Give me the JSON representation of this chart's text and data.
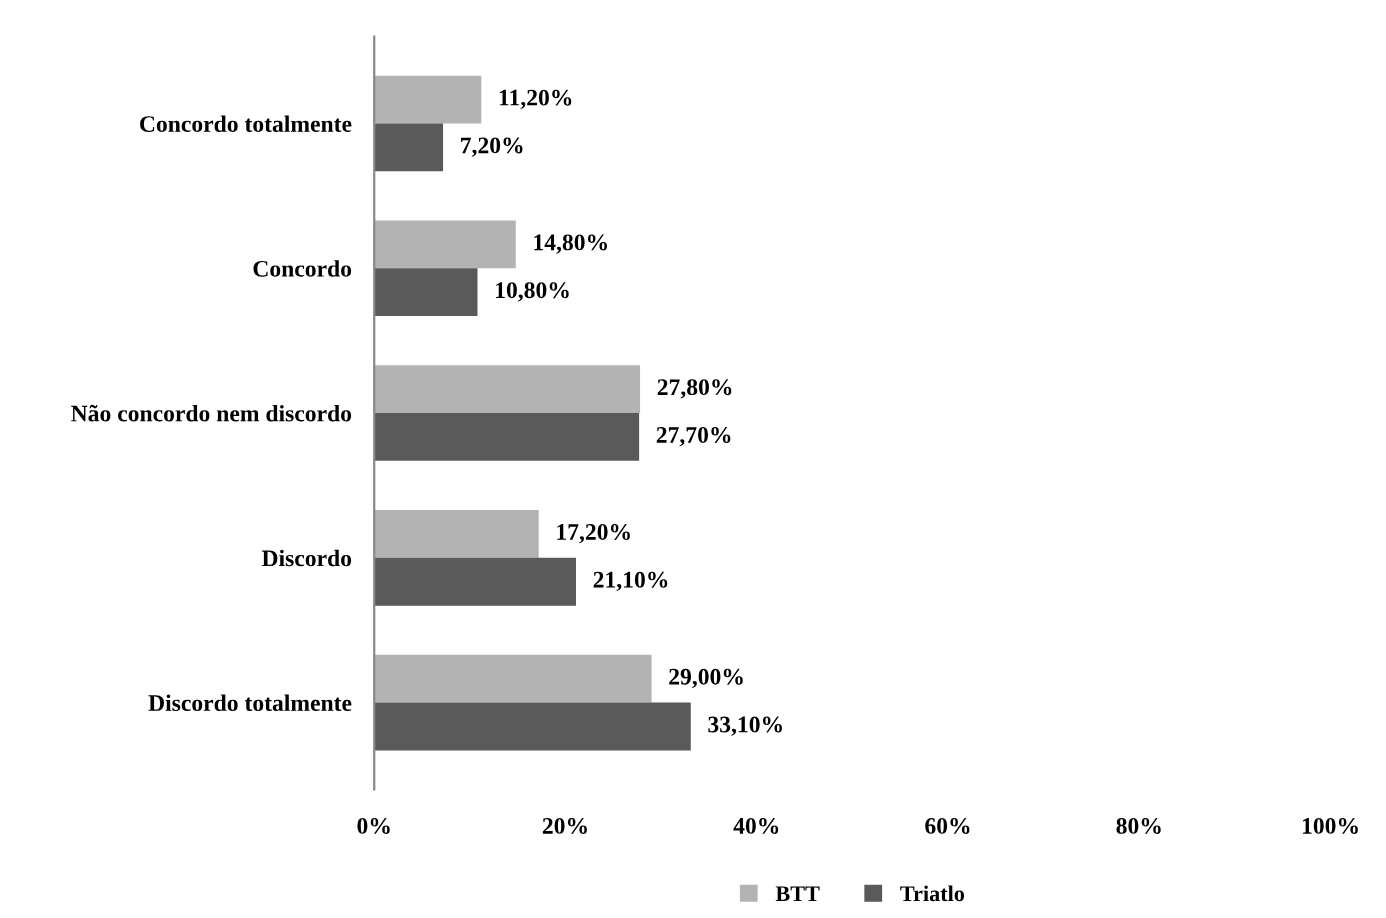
{
  "chart_data": {
    "type": "bar",
    "orientation": "horizontal",
    "categories": [
      "Concordo totalmente",
      "Concordo",
      "Não concordo nem discordo",
      "Discordo",
      "Discordo totalmente"
    ],
    "series": [
      {
        "name": "BTT",
        "color": "#b3b3b3",
        "values": [
          11.2,
          14.8,
          27.8,
          17.2,
          29.0
        ],
        "value_labels": [
          "11,20%",
          "14,80%",
          "27,80%",
          "17,20%",
          "29,00%"
        ]
      },
      {
        "name": "Triatlo",
        "color": "#5a5a5a",
        "values": [
          7.2,
          10.8,
          27.7,
          21.1,
          33.1
        ],
        "value_labels": [
          "7,20%",
          "10,80%",
          "27,70%",
          "21,10%",
          "33,10%"
        ]
      }
    ],
    "xlim": [
      0,
      100
    ],
    "xticks": [
      {
        "value": 0,
        "label": "0%"
      },
      {
        "value": 20,
        "label": "20%"
      },
      {
        "value": 40,
        "label": "40%"
      },
      {
        "value": 60,
        "label": "60%"
      },
      {
        "value": 80,
        "label": "80%"
      },
      {
        "value": 100,
        "label": "100%"
      }
    ],
    "grid": false,
    "legend": "bottom"
  }
}
